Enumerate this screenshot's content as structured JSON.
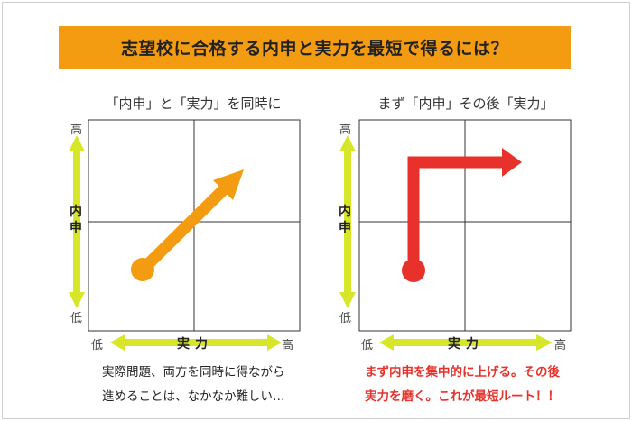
{
  "title": "志望校に合格する内申と実力を最短で得るには？",
  "left": {
    "subtitle": "「内申」と「実力」を同時に",
    "y_axis_label": "内申",
    "x_axis_label": "実力",
    "y_high": "高",
    "y_low": "低",
    "x_low": "低",
    "x_high": "高",
    "caption_line1": "実際問題、両方を同時に得ながら",
    "caption_line2": "進めることは、なかなか難しい…",
    "arrow_color": "#f39c12"
  },
  "right": {
    "subtitle": "まず「内申」その後「実力」",
    "y_axis_label": "内申",
    "x_axis_label": "実力",
    "y_high": "高",
    "y_low": "低",
    "x_low": "低",
    "x_high": "高",
    "caption_line1": "まず内申を集中的に上げる。その後",
    "caption_line2": "実力を磨く。これが最短ルート！！",
    "arrow_color": "#e8312a"
  },
  "colors": {
    "banner": "#f39c12",
    "axis_arrow": "#d7e628",
    "grid_line": "#333333",
    "caption_emphasis": "#e8312a"
  }
}
